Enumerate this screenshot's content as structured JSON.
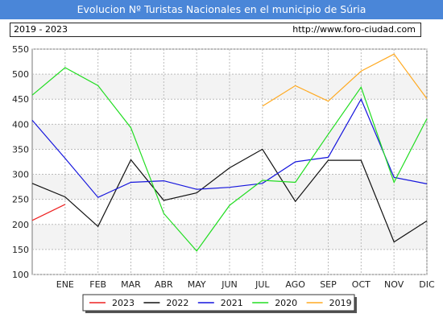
{
  "header": {
    "title": "Evolucion Nº Turistas Nacionales en el municipio de Súria",
    "period": "2019 - 2023",
    "url": "http://www.foro-ciudad.com"
  },
  "chart_data": {
    "type": "line",
    "title": "Evolucion Nº Turistas Nacionales en el municipio de Súria",
    "xlabel": "",
    "ylabel": "",
    "categories": [
      "",
      "ENE",
      "FEB",
      "MAR",
      "ABR",
      "MAY",
      "JUN",
      "JUL",
      "AGO",
      "SEP",
      "OCT",
      "NOV",
      "DIC"
    ],
    "y_ticks": [
      100,
      150,
      200,
      250,
      300,
      350,
      400,
      450,
      500,
      550
    ],
    "ylim": [
      100,
      550
    ],
    "grid": true,
    "legend_position": "bottom",
    "series": [
      {
        "name": "2023",
        "color": "#ee2222",
        "values": [
          208,
          240,
          null,
          null,
          null,
          null,
          null,
          null,
          null,
          null,
          null,
          null,
          null
        ]
      },
      {
        "name": "2022",
        "color": "#111111",
        "values": [
          282,
          255,
          196,
          329,
          248,
          263,
          313,
          350,
          246,
          328,
          328,
          165,
          207
        ]
      },
      {
        "name": "2021",
        "color": "#1515dd",
        "values": [
          408,
          332,
          254,
          284,
          287,
          270,
          274,
          282,
          325,
          334,
          450,
          294,
          281
        ]
      },
      {
        "name": "2020",
        "color": "#22dd22",
        "values": [
          458,
          513,
          477,
          393,
          222,
          147,
          238,
          288,
          284,
          380,
          474,
          284,
          411
        ]
      },
      {
        "name": "2019",
        "color": "#ffaa22",
        "values": [
          null,
          null,
          null,
          null,
          null,
          null,
          null,
          436,
          477,
          446,
          506,
          540,
          451
        ]
      }
    ]
  }
}
